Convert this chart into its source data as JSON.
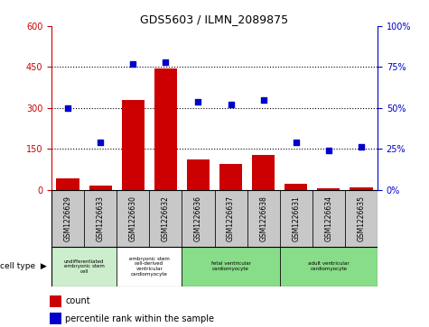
{
  "title": "GDS5603 / ILMN_2089875",
  "samples": [
    "GSM1226629",
    "GSM1226633",
    "GSM1226630",
    "GSM1226632",
    "GSM1226636",
    "GSM1226637",
    "GSM1226638",
    "GSM1226631",
    "GSM1226634",
    "GSM1226635"
  ],
  "counts": [
    40,
    15,
    330,
    445,
    110,
    95,
    128,
    22,
    5,
    8
  ],
  "percentiles": [
    50,
    29,
    77,
    78,
    54,
    52,
    55,
    29,
    24,
    26
  ],
  "ylim_left": [
    0,
    600
  ],
  "ylim_right": [
    0,
    100
  ],
  "yticks_left": [
    0,
    150,
    300,
    450,
    600
  ],
  "yticks_right": [
    0,
    25,
    50,
    75,
    100
  ],
  "cell_types": [
    {
      "label": "undifferentiated\nembryonic stem\ncell",
      "span": [
        0,
        2
      ],
      "color": "#cceecc"
    },
    {
      "label": "embryonic stem\ncell-derived\nventricular\ncardiomyocyte",
      "span": [
        2,
        4
      ],
      "color": "#ffffff"
    },
    {
      "label": "fetal ventricular\ncardiomyocyte",
      "span": [
        4,
        7
      ],
      "color": "#88dd88"
    },
    {
      "label": "adult ventricular\ncardiomyocyte",
      "span": [
        7,
        10
      ],
      "color": "#88dd88"
    }
  ],
  "bar_color": "#cc0000",
  "dot_color": "#0000cc",
  "grid_color": "#000000",
  "bg_color": "#ffffff",
  "sample_bg_color": "#c8c8c8",
  "left_axis_color": "#cc0000",
  "right_axis_color": "#0000cc"
}
